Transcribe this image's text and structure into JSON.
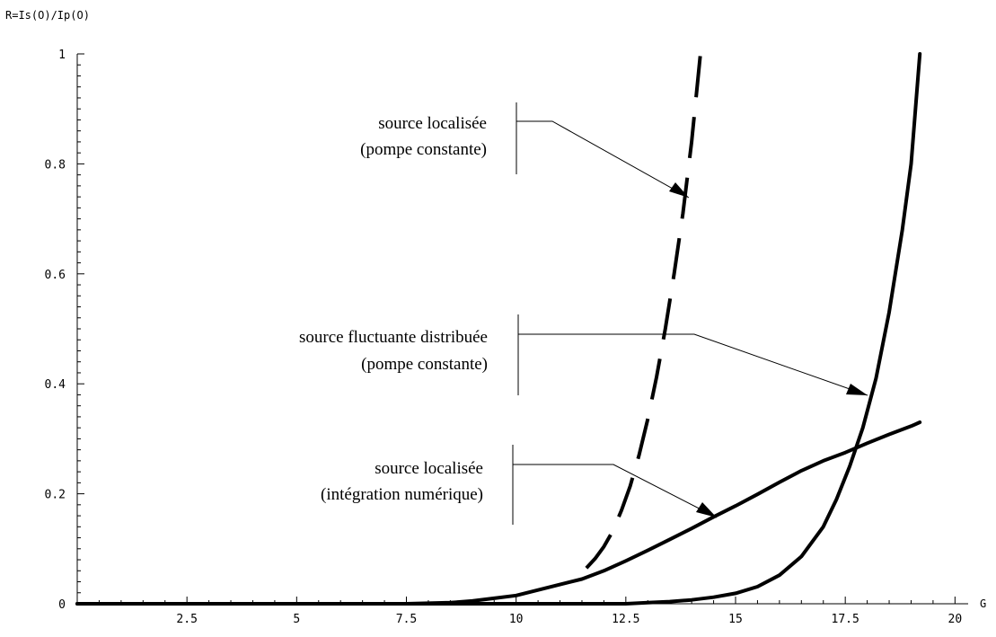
{
  "chart_data": {
    "type": "line",
    "title": "",
    "xlabel": "G",
    "ylabel": "R=Is(O)/Ip(O)",
    "xlim": [
      0,
      20.3
    ],
    "ylim": [
      0,
      1
    ],
    "x_ticks": [
      {
        "value": 2.5,
        "label": "2.5"
      },
      {
        "value": 5,
        "label": "5"
      },
      {
        "value": 7.5,
        "label": "7.5"
      },
      {
        "value": 10,
        "label": "10"
      },
      {
        "value": 12.5,
        "label": "12.5"
      },
      {
        "value": 15,
        "label": "15"
      },
      {
        "value": 17.5,
        "label": "17.5"
      },
      {
        "value": 20,
        "label": "20"
      }
    ],
    "y_ticks": [
      {
        "value": 0,
        "label": "0"
      },
      {
        "value": 0.2,
        "label": "0.2"
      },
      {
        "value": 0.4,
        "label": "0.4"
      },
      {
        "value": 0.6,
        "label": "0.6"
      },
      {
        "value": 0.8,
        "label": "0.8"
      },
      {
        "value": 1,
        "label": "1"
      }
    ],
    "grid": false,
    "series": [
      {
        "style": "dashed",
        "x": [
          11.6,
          11.8,
          12.0,
          12.2,
          12.4,
          12.6,
          12.8,
          13.0,
          13.2,
          13.4,
          13.6,
          13.8,
          14.0,
          14.2
        ],
        "y": [
          0.065,
          0.082,
          0.104,
          0.132,
          0.17,
          0.214,
          0.27,
          0.336,
          0.412,
          0.5,
          0.6,
          0.71,
          0.84,
          1.0
        ]
      },
      {
        "style": "solid",
        "x": [
          0,
          7.5,
          8.5,
          9.0,
          9.5,
          10.0,
          10.5,
          11.0,
          11.5,
          12.0,
          12.5,
          13.0,
          13.5,
          14.0,
          14.5,
          15.0,
          15.5,
          16.0,
          16.5,
          17.0,
          17.5,
          18.0,
          18.5,
          19.0,
          19.2
        ],
        "y": [
          0,
          0,
          0.002,
          0.005,
          0.01,
          0.015,
          0.025,
          0.035,
          0.045,
          0.06,
          0.078,
          0.097,
          0.117,
          0.137,
          0.158,
          0.178,
          0.199,
          0.221,
          0.242,
          0.26,
          0.275,
          0.292,
          0.308,
          0.323,
          0.33
        ]
      },
      {
        "style": "solid",
        "x": [
          0,
          12.5,
          13.0,
          13.5,
          14.0,
          14.5,
          15.0,
          15.5,
          16.0,
          16.5,
          17.0,
          17.3,
          17.6,
          17.9,
          18.2,
          18.5,
          18.8,
          19.0,
          19.2
        ],
        "y": [
          0,
          0,
          0.002,
          0.004,
          0.007,
          0.012,
          0.019,
          0.031,
          0.052,
          0.086,
          0.14,
          0.19,
          0.25,
          0.32,
          0.41,
          0.53,
          0.68,
          0.8,
          1.0
        ]
      }
    ],
    "annotations": [
      {
        "lines": [
          "source localisée",
          "(pompe constante)"
        ],
        "target": {
          "x": 13.8,
          "y": 0.735
        }
      },
      {
        "lines": [
          "source fluctuante distribuée",
          "(pompe constante)"
        ],
        "target": {
          "x": 17.9,
          "y": 0.375
        }
      },
      {
        "lines": [
          "source localisée",
          "(intégration numérique)"
        ],
        "target": {
          "x": 14.6,
          "y": 0.155
        }
      }
    ]
  }
}
